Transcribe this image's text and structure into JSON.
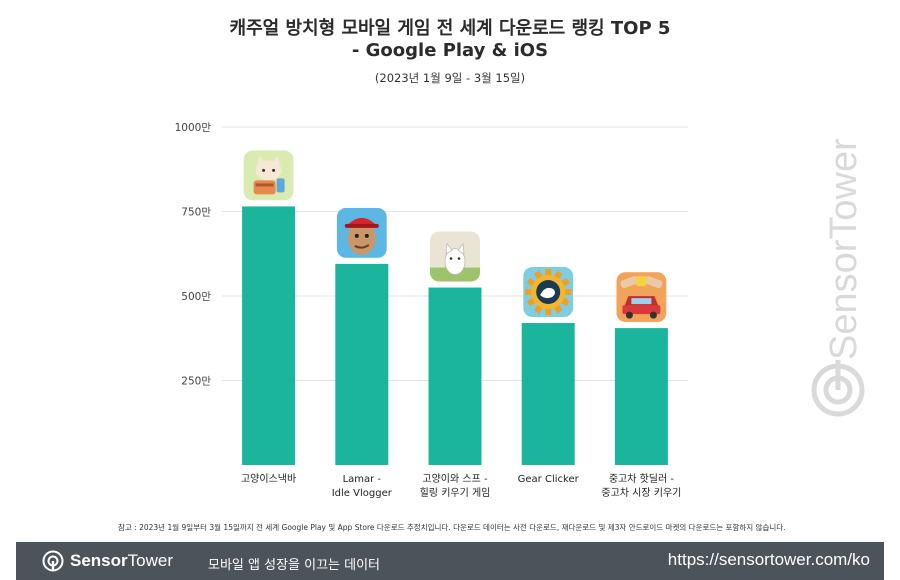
{
  "title_line1": "캐주얼 방치형 모바일 게임 전 세계 다운로드 랭킹 TOP 5",
  "title_line2": "- Google Play & iOS",
  "subtitle": "(2023년 1월 9일 - 3월 15일)",
  "note": "참고 : 2023년 1월 9일부터 3월 15일까지 전 세계 Google Play 및 App Store 다운로드 추정치입니다. 다운로드 데이터는 사전 다운로드, 재다운로드 및 제3자 안드로이드 마켓의 다운로드는 포함하지 않습니다.",
  "watermark": "SensorTower",
  "footer": {
    "brand_bold": "Sensor",
    "brand_regular": "Tower",
    "tagline": "모바일 앱 성장을 이끄는 데이터",
    "url": "https://sensortower.com/ko"
  },
  "colors": {
    "bar": "#1bb49c",
    "grid": "#e3e3e3",
    "footer_bg": "#4d535b"
  },
  "chart_data": {
    "type": "bar",
    "title": "캐주얼 방치형 모바일 게임 전 세계 다운로드 랭킹 TOP 5 - Google Play & iOS",
    "subtitle": "(2023년 1월 9일 - 3월 15일)",
    "categories": [
      [
        "고양이스낵바"
      ],
      [
        "Lamar -",
        "Idle Vlogger"
      ],
      [
        "고양이와 스프 -",
        "힐링 키우기 게임"
      ],
      [
        "Gear Clicker"
      ],
      [
        "중고차 핫딜러 -",
        "중고차 시장 키우기"
      ]
    ],
    "values": [
      7650000,
      5950000,
      5250000,
      4200000,
      4050000
    ],
    "yticks": [
      2500000,
      5000000,
      7500000,
      10000000
    ],
    "ytick_labels": [
      "250만",
      "500만",
      "750만",
      "1000만"
    ],
    "ylim": [
      0,
      10000000
    ],
    "grid": true,
    "app_icons": [
      "cat-snackbar-icon",
      "lamar-vlogger-icon",
      "cat-soup-icon",
      "gear-clicker-icon",
      "used-car-dealer-icon"
    ]
  }
}
